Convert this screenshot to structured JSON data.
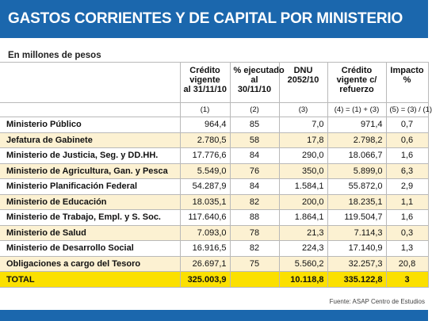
{
  "header": {
    "title": "GASTOS CORRIENTES Y DE CAPITAL POR MINISTERIO",
    "subtitle": "En millones de pesos"
  },
  "table": {
    "columns": [
      [
        "Crédito",
        "vigente",
        "al 31/11/10"
      ],
      [
        "% ejecutado",
        "al",
        "30/11/10"
      ],
      [
        "DNU",
        "2052/10"
      ],
      [
        "Crédito",
        "vigente c/",
        "refuerzo"
      ],
      [
        "Impacto",
        "%"
      ]
    ],
    "formulas": [
      "(1)",
      "(2)",
      "(3)",
      "(4) = (1) + (3)",
      "(5) = (3) / (1)"
    ],
    "rows": [
      [
        "Ministerio Público",
        "964,4",
        "85",
        "7,0",
        "971,4",
        "0,7"
      ],
      [
        "Jefatura de Gabinete",
        "2.780,5",
        "58",
        "17,8",
        "2.798,2",
        "0,6"
      ],
      [
        "Ministerio de Justicia, Seg. y DD.HH.",
        "17.776,6",
        "84",
        "290,0",
        "18.066,7",
        "1,6"
      ],
      [
        "Ministerio de Agricultura, Gan. y Pesca",
        "5.549,0",
        "76",
        "350,0",
        "5.899,0",
        "6,3"
      ],
      [
        "Ministerio Planificación Federal",
        "54.287,9",
        "84",
        "1.584,1",
        "55.872,0",
        "2,9"
      ],
      [
        "Ministerio de Educación",
        "18.035,1",
        "82",
        "200,0",
        "18.235,1",
        "1,1"
      ],
      [
        "Ministerio de Trabajo, Empl. y S. Soc.",
        "117.640,6",
        "88",
        "1.864,1",
        "119.504,7",
        "1,6"
      ],
      [
        "Ministerio de Salud",
        "7.093,0",
        "78",
        "21,3",
        "7.114,3",
        "0,3"
      ],
      [
        "Ministerio de Desarrollo Social",
        "16.916,5",
        "82",
        "224,3",
        "17.140,9",
        "1,3"
      ],
      [
        "Obligaciones a cargo del Tesoro",
        "26.697,1",
        "75",
        "5.560,2",
        "32.257,3",
        "20,8"
      ]
    ],
    "total": [
      "TOTAL",
      "325.003,9",
      "",
      "10.118,8",
      "335.122,8",
      "3"
    ]
  },
  "footer": {
    "source": "Fuente: ASAP Centro de Estudios"
  }
}
